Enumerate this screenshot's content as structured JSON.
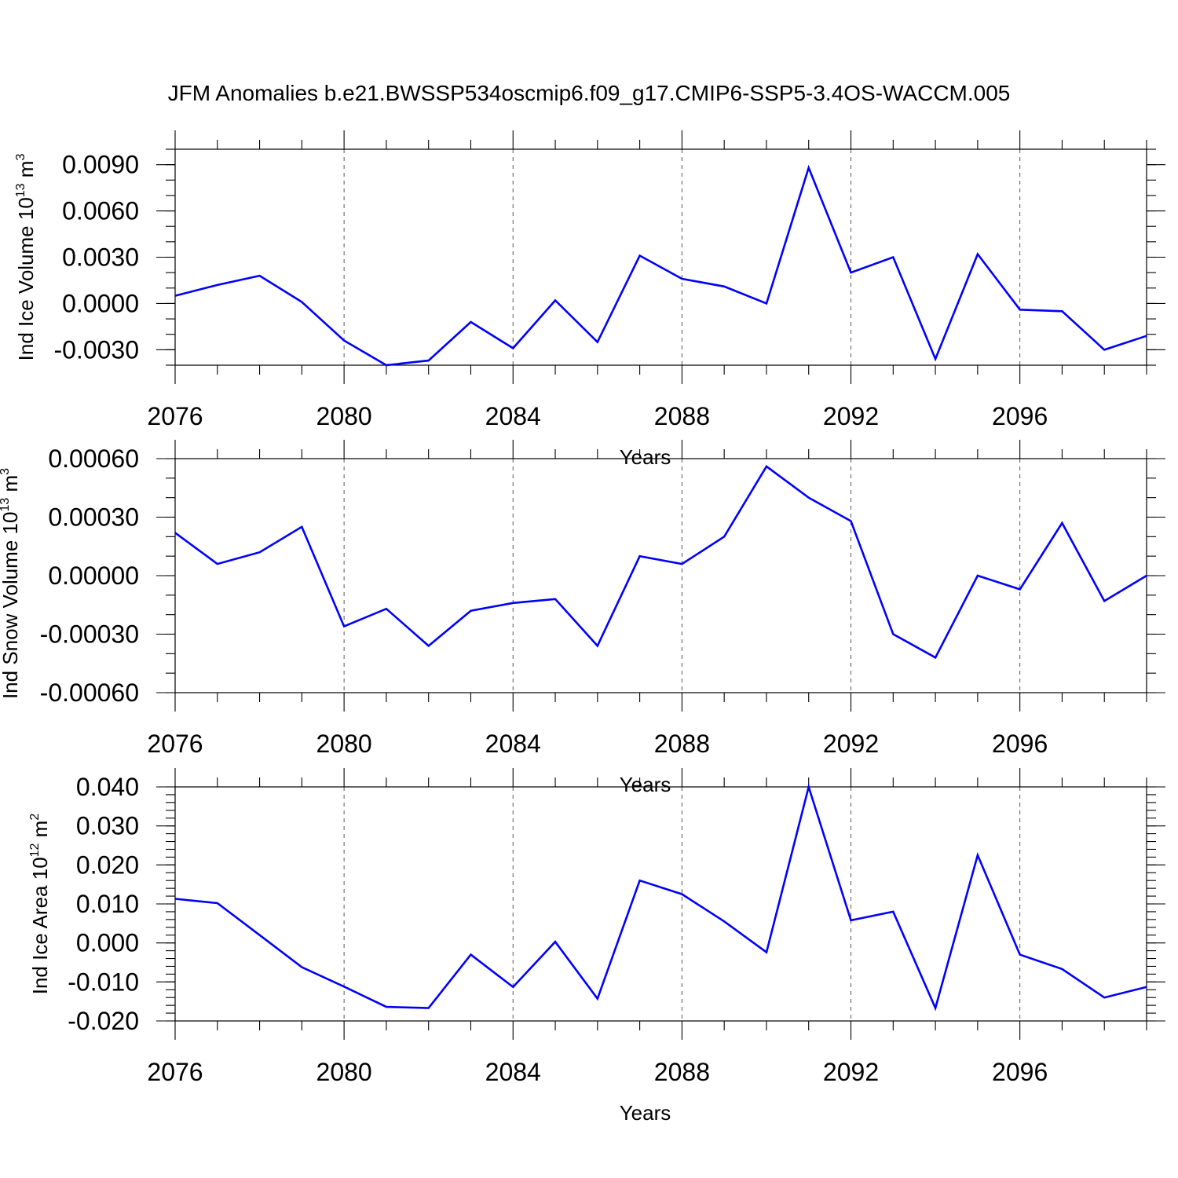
{
  "title": "JFM Anomalies b.e21.BWSSP534oscmip6.f09_g17.CMIP6-SSP5-3.4OS-WACCM.005",
  "colors": {
    "line": "#0000ff",
    "axis": "#000000",
    "grid": "#555555"
  },
  "chart_data": [
    {
      "type": "line",
      "ylabel": {
        "text": "Ind Ice Volume 10",
        "sup": "13",
        "unit": " m",
        "unit_sup": "3"
      },
      "xlabel": "Years",
      "x": [
        2076,
        2077,
        2078,
        2079,
        2080,
        2081,
        2082,
        2083,
        2084,
        2085,
        2086,
        2087,
        2088,
        2089,
        2090,
        2091,
        2092,
        2093,
        2094,
        2095,
        2096,
        2097,
        2098,
        2099
      ],
      "values": [
        0.0005,
        0.0012,
        0.0018,
        0.0001,
        -0.0024,
        -0.004,
        -0.0037,
        -0.0012,
        -0.0029,
        0.0002,
        -0.0025,
        0.0031,
        0.0016,
        0.0011,
        0.0,
        0.0088,
        0.002,
        0.003,
        -0.0036,
        0.0032,
        -0.0004,
        -0.0005,
        -0.003,
        -0.0021
      ],
      "xlim": [
        2076,
        2099
      ],
      "ylim": [
        -0.004,
        0.01
      ],
      "yticks": [
        -0.003,
        0.0,
        0.003,
        0.006,
        0.009
      ],
      "ytick_labels": [
        "-0.0030",
        "0.0000",
        "0.0030",
        "0.0060",
        "0.0090"
      ],
      "yminor_step": 0.001,
      "xticks": [
        2076,
        2080,
        2084,
        2088,
        2092,
        2096
      ],
      "xtick_labels": [
        "2076",
        "2080",
        "2084",
        "2088",
        "2092",
        "2096"
      ],
      "grid_x": [
        2080,
        2084,
        2088,
        2092,
        2096
      ]
    },
    {
      "type": "line",
      "ylabel": {
        "text": "Ind Snow Volume 10",
        "sup": "13",
        "unit": " m",
        "unit_sup": "3"
      },
      "xlabel": "Years",
      "x": [
        2076,
        2077,
        2078,
        2079,
        2080,
        2081,
        2082,
        2083,
        2084,
        2085,
        2086,
        2087,
        2088,
        2089,
        2090,
        2091,
        2092,
        2093,
        2094,
        2095,
        2096,
        2097,
        2098,
        2099
      ],
      "values": [
        0.00022,
        6e-05,
        0.00012,
        0.00025,
        -0.00026,
        -0.00017,
        -0.00036,
        -0.00018,
        -0.00014,
        -0.00012,
        -0.00036,
        0.0001,
        6e-05,
        0.0002,
        0.00056,
        0.0004,
        0.00028,
        -0.0003,
        -0.00042,
        0.0,
        -7e-05,
        0.00027,
        -0.00013,
        0.0
      ],
      "xlim": [
        2076,
        2099
      ],
      "ylim": [
        -0.0006,
        0.0006
      ],
      "yticks": [
        -0.0006,
        -0.0003,
        0.0,
        0.0003,
        0.0006
      ],
      "ytick_labels": [
        "-0.00060",
        "-0.00030",
        "0.00000",
        "0.00030",
        "0.00060"
      ],
      "yminor_step": 0.0001,
      "xticks": [
        2076,
        2080,
        2084,
        2088,
        2092,
        2096
      ],
      "xtick_labels": [
        "2076",
        "2080",
        "2084",
        "2088",
        "2092",
        "2096"
      ],
      "grid_x": [
        2080,
        2084,
        2088,
        2092,
        2096
      ]
    },
    {
      "type": "line",
      "ylabel": {
        "text": "Ind Ice Area 10",
        "sup": "12",
        "unit": " m",
        "unit_sup": "2"
      },
      "xlabel": "Years",
      "x": [
        2076,
        2077,
        2078,
        2079,
        2080,
        2081,
        2082,
        2083,
        2084,
        2085,
        2086,
        2087,
        2088,
        2089,
        2090,
        2091,
        2092,
        2093,
        2094,
        2095,
        2096,
        2097,
        2098,
        2099
      ],
      "values": [
        0.0113,
        0.0102,
        0.002,
        -0.0062,
        -0.0112,
        -0.0164,
        -0.0167,
        -0.003,
        -0.0113,
        0.0003,
        -0.0143,
        0.016,
        0.0125,
        0.0055,
        -0.0024,
        0.04,
        0.0058,
        0.008,
        -0.0167,
        0.0225,
        -0.003,
        -0.0067,
        -0.014,
        -0.0113
      ],
      "xlim": [
        2076,
        2099
      ],
      "ylim": [
        -0.02,
        0.04
      ],
      "yticks": [
        -0.02,
        -0.01,
        0.0,
        0.01,
        0.02,
        0.03,
        0.04
      ],
      "ytick_labels": [
        "-0.020",
        "-0.010",
        "0.000",
        "0.010",
        "0.020",
        "0.030",
        "0.040"
      ],
      "yminor_step": 0.002,
      "xticks": [
        2076,
        2080,
        2084,
        2088,
        2092,
        2096
      ],
      "xtick_labels": [
        "2076",
        "2080",
        "2084",
        "2088",
        "2092",
        "2096"
      ],
      "grid_x": [
        2080,
        2084,
        2088,
        2092,
        2096
      ]
    }
  ]
}
